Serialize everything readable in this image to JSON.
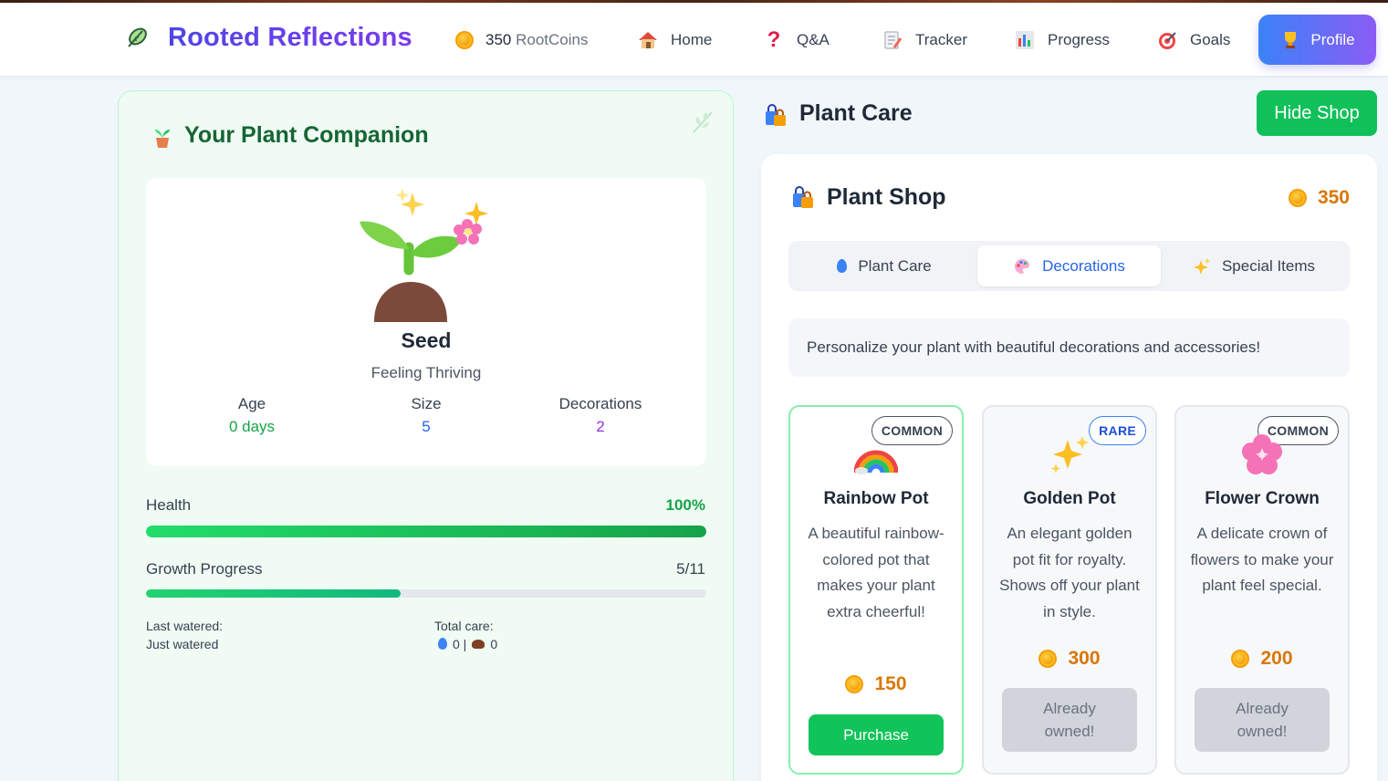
{
  "nav": {
    "brand": "Rooted Reflections",
    "coins_value": "350",
    "coins_unit": "RootCoins",
    "items": [
      {
        "label": "Home",
        "icon": "house-icon"
      },
      {
        "label": "Q&A",
        "icon": "question-icon"
      },
      {
        "label": "Tracker",
        "icon": "notepad-icon"
      },
      {
        "label": "Progress",
        "icon": "bar-chart-icon"
      },
      {
        "label": "Goals",
        "icon": "target-icon"
      }
    ],
    "profile_label": "Profile"
  },
  "companion": {
    "title": "Your Plant Companion",
    "stage": "Seed",
    "feeling": "Feeling Thriving",
    "stats": [
      {
        "label": "Age",
        "value": "0 days"
      },
      {
        "label": "Size",
        "value": "5"
      },
      {
        "label": "Decorations",
        "value": "2"
      }
    ],
    "health_label": "Health",
    "health_value": "100%",
    "health_fraction": 1.0,
    "growth_label": "Growth Progress",
    "growth_value": "5/11",
    "growth_fraction": 0.4545,
    "last_watered_label": "Last watered:",
    "last_watered_value": "Just watered",
    "total_care_label": "Total care:",
    "water_count": "0 |",
    "fertilizer_count": "0"
  },
  "care": {
    "title": "Plant Care",
    "hide_shop_label": "Hide Shop"
  },
  "shop": {
    "title": "Plant Shop",
    "coins": "350",
    "tabs": [
      {
        "label": "Plant Care",
        "icon": "droplet-icon"
      },
      {
        "label": "Decorations",
        "icon": "palette-icon"
      },
      {
        "label": "Special Items",
        "icon": "sparkles-icon"
      }
    ],
    "active_tab": "Decorations",
    "description": "Personalize your plant with beautiful decorations and accessories!",
    "items": [
      {
        "name": "Rainbow Pot",
        "rarity": "COMMON",
        "description": "A beautiful rainbow-colored pot that makes your plant extra cheerful!",
        "price": "150",
        "action": "Purchase",
        "icon": "rainbow-icon"
      },
      {
        "name": "Golden Pot",
        "rarity": "RARE",
        "description": "An elegant golden pot fit for royalty. Shows off your plant in style.",
        "price": "300",
        "action": "Already owned!",
        "icon": "sparkles-icon"
      },
      {
        "name": "Flower Crown",
        "rarity": "COMMON",
        "description": "A delicate crown of flowers to make your plant feel special.",
        "price": "200",
        "action": "Already owned!",
        "icon": "blossom-icon"
      }
    ]
  }
}
